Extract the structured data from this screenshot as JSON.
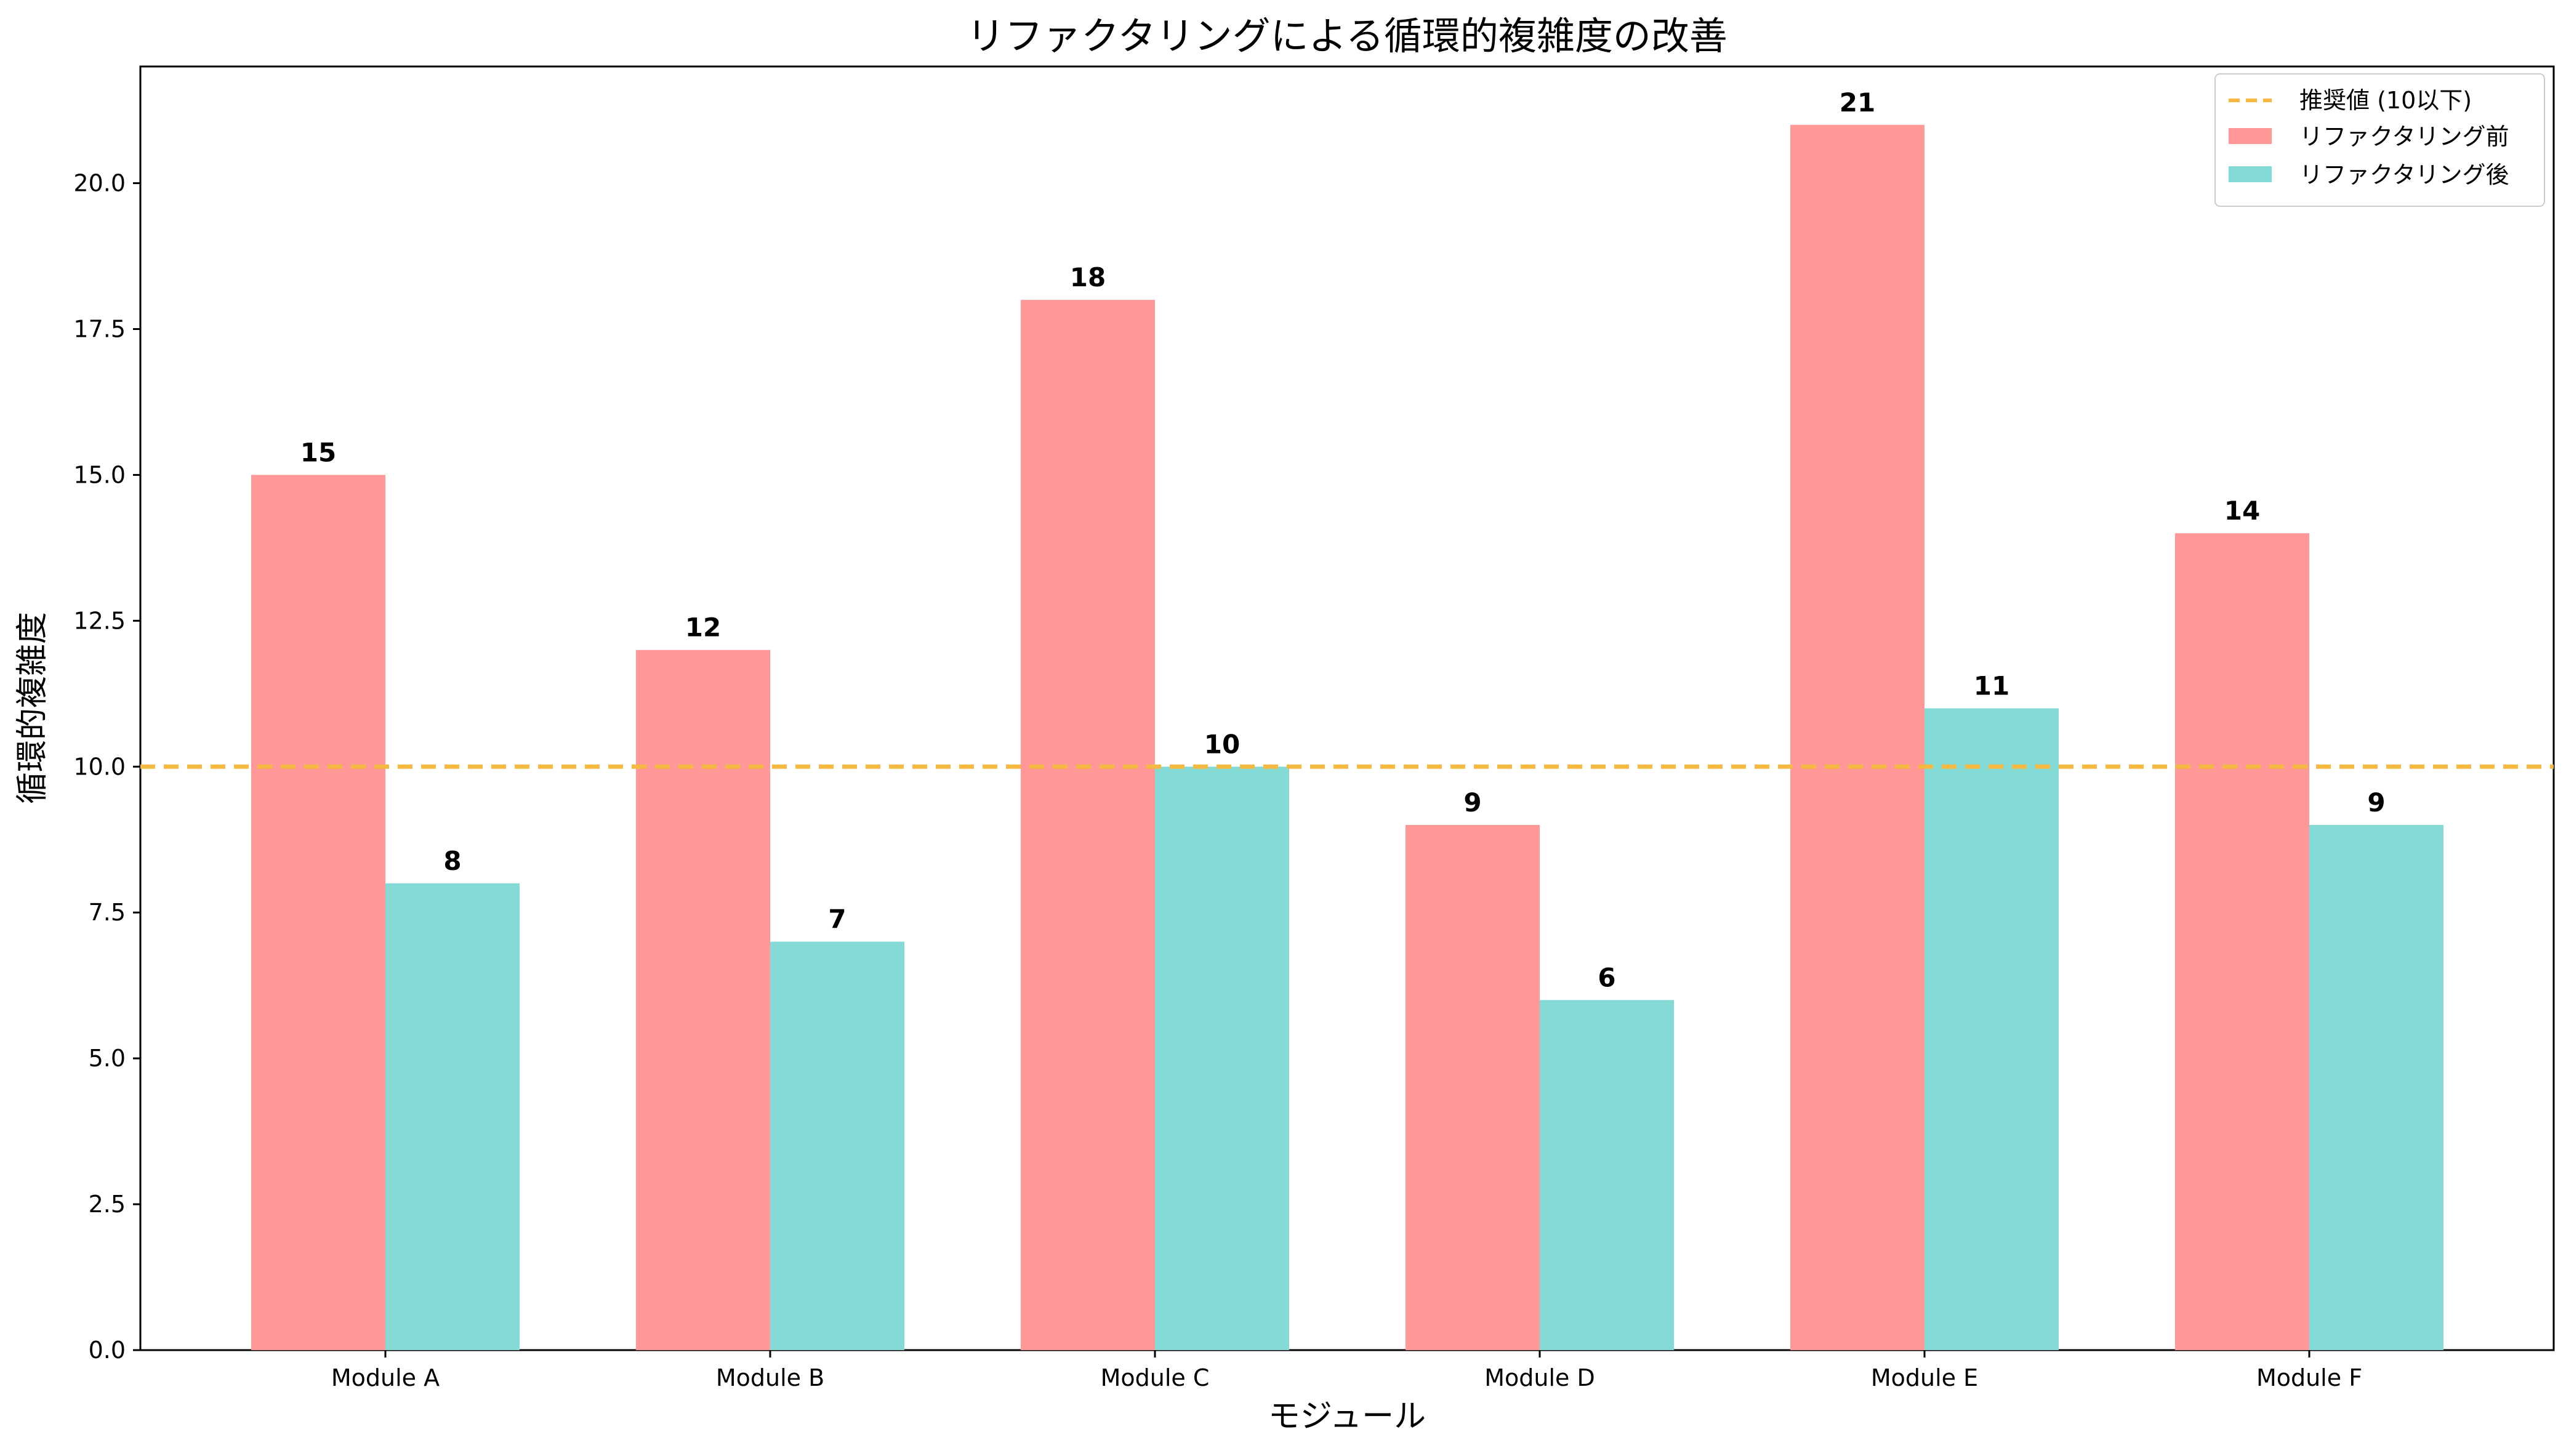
{
  "chart_data": {
    "type": "bar",
    "title": "リファクタリングによる循環的複雑度の改善",
    "xlabel": "モジュール",
    "ylabel": "循環的複雑度",
    "categories": [
      "Module A",
      "Module B",
      "Module C",
      "Module D",
      "Module E",
      "Module F"
    ],
    "series": [
      {
        "name": "リファクタリング前",
        "values": [
          15,
          12,
          18,
          9,
          21,
          14
        ],
        "color": "#ff9896"
      },
      {
        "name": "リファクタリング後",
        "values": [
          8,
          7,
          10,
          6,
          11,
          9
        ],
        "color": "#84dbd5"
      }
    ],
    "reference_line": {
      "name": "推奨値 (10以下)",
      "value": 10,
      "color": "#f5b942",
      "style": "dashed"
    },
    "ylim": [
      0,
      22
    ],
    "yticks": [
      "0.0",
      "2.5",
      "5.0",
      "7.5",
      "10.0",
      "12.5",
      "15.0",
      "17.5",
      "20.0"
    ],
    "grid": false,
    "legend_position": "top-right"
  }
}
